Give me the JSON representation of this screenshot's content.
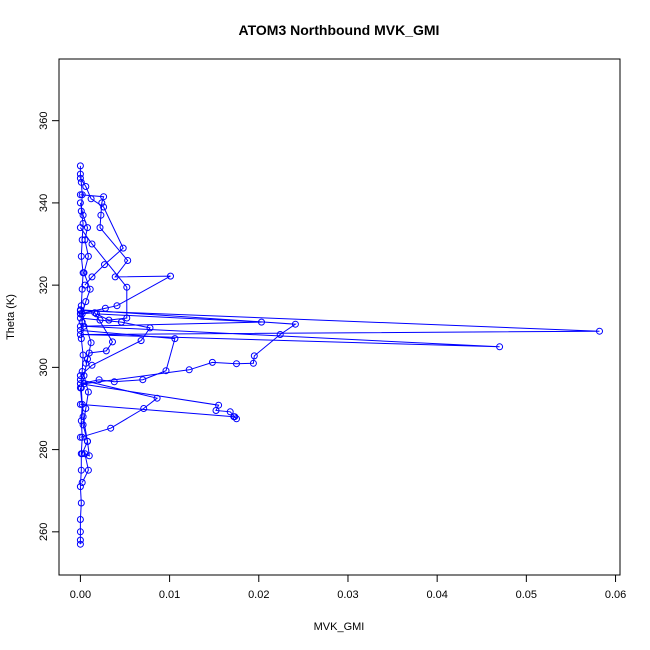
{
  "chart_data": {
    "type": "line",
    "title": "ATOM3 Northbound MVK_GMI",
    "xlabel": "MVK_GMI",
    "ylabel": "Theta (K)",
    "xlim": [
      -0.0024,
      0.0605
    ],
    "ylim": [
      249.5,
      375
    ],
    "x_ticks": [
      0,
      0.01,
      0.02,
      0.03,
      0.04,
      0.05,
      0.06
    ],
    "x_tick_labels": [
      "0.00",
      "0.01",
      "0.02",
      "0.03",
      "0.04",
      "0.05",
      "0.06"
    ],
    "y_ticks": [
      260,
      280,
      300,
      320,
      340,
      360
    ],
    "y_tick_labels": [
      "260",
      "280",
      "300",
      "320",
      "340",
      "360"
    ],
    "grid": false,
    "series_color": "#0000ff",
    "marker": "open-circle",
    "series": [
      {
        "points": [
          [
            0.0,
            349.0
          ],
          [
            0.0,
            347.0
          ],
          [
            0.0001,
            345.0
          ],
          [
            0.0002,
            342.0
          ],
          [
            0.0001,
            338.0
          ],
          [
            0.0003,
            335.0
          ],
          [
            0.0002,
            331.0
          ],
          [
            0.0001,
            327.0
          ],
          [
            0.0003,
            323.0
          ],
          [
            0.0002,
            319.0
          ],
          [
            0.0001,
            315.0
          ],
          [
            0.0002,
            311.0
          ],
          [
            0.0001,
            307.0
          ],
          [
            0.0003,
            303.0
          ],
          [
            0.0002,
            299.0
          ],
          [
            0.0001,
            295.0
          ],
          [
            0.0002,
            291.0
          ],
          [
            0.0001,
            287.0
          ],
          [
            0.0002,
            283.0
          ],
          [
            0.0001,
            279.0
          ],
          [
            0.0001,
            275.0
          ],
          [
            0.0,
            271.0
          ],
          [
            0.0001,
            267.0
          ],
          [
            0.0,
            263.0
          ],
          [
            0.0,
            260.0
          ],
          [
            0.0,
            258.0
          ],
          [
            0.0,
            257.0
          ]
        ]
      },
      {
        "points": [
          [
            0.0,
            346.0
          ],
          [
            0.0006,
            344.0
          ],
          [
            0.0012,
            341.0
          ],
          [
            0.0026,
            339.0
          ],
          [
            0.0048,
            329.0
          ],
          [
            0.0027,
            325.0
          ],
          [
            0.0013,
            322.0
          ],
          [
            0.0005,
            320.0
          ]
        ]
      },
      {
        "points": [
          [
            0.0,
            342.0
          ],
          [
            0.0026,
            341.5
          ],
          [
            0.0024,
            340.0
          ],
          [
            0.0023,
            337.0
          ],
          [
            0.0022,
            334.0
          ],
          [
            0.0053,
            326.0
          ],
          [
            0.0039,
            322.0
          ],
          [
            0.0101,
            322.2
          ],
          [
            0.0041,
            315.0
          ],
          [
            0.0028,
            314.4
          ],
          [
            0.0,
            313.0
          ]
        ]
      },
      {
        "points": [
          [
            0.0,
            334.0
          ],
          [
            0.0013,
            330.0
          ],
          [
            0.0052,
            319.5
          ],
          [
            0.0052,
            312.0
          ],
          [
            0.0032,
            311.5
          ],
          [
            0.0018,
            313.0
          ],
          [
            0.0203,
            311.0
          ],
          [
            0.0,
            310.0
          ]
        ]
      },
      {
        "points": [
          [
            0.0,
            313.8
          ],
          [
            0.0582,
            308.8
          ],
          [
            0.0,
            308.0
          ],
          [
            0.047,
            305.0
          ],
          [
            0.0004,
            310.0
          ]
        ]
      },
      {
        "points": [
          [
            0.0,
            314.0
          ],
          [
            0.0241,
            310.5
          ],
          [
            0.0224,
            308.0
          ],
          [
            0.0195,
            302.8
          ],
          [
            0.0194,
            301.0
          ],
          [
            0.0175,
            300.9
          ],
          [
            0.0148,
            301.2
          ],
          [
            0.0122,
            299.4
          ],
          [
            0.0004,
            296.0
          ]
        ]
      },
      {
        "points": [
          [
            0.0,
            313.0
          ],
          [
            0.0016,
            313.3
          ],
          [
            0.0036,
            306.2
          ],
          [
            0.0029,
            304.0
          ],
          [
            0.001,
            303.5
          ],
          [
            0.0006,
            301.0
          ]
        ]
      },
      {
        "points": [
          [
            0.0,
            312.0
          ],
          [
            0.0022,
            311.5
          ],
          [
            0.0046,
            311.0
          ],
          [
            0.0078,
            309.6
          ],
          [
            0.0068,
            306.5
          ],
          [
            0.0013,
            300.5
          ],
          [
            0.0,
            298.0
          ]
        ]
      },
      {
        "points": [
          [
            0.0,
            309.0
          ],
          [
            0.0106,
            307.0
          ],
          [
            0.0096,
            299.2
          ],
          [
            0.007,
            297.0
          ],
          [
            0.0038,
            296.5
          ],
          [
            0.0021,
            297.0
          ],
          [
            0.0,
            296.0
          ]
        ]
      },
      {
        "points": [
          [
            0.0,
            297.0
          ],
          [
            0.0086,
            292.5
          ],
          [
            0.0071,
            290.0
          ],
          [
            0.0034,
            285.2
          ],
          [
            0.0,
            283.0
          ]
        ]
      },
      {
        "points": [
          [
            0.0,
            296.0
          ],
          [
            0.0155,
            290.8
          ],
          [
            0.0152,
            289.5
          ],
          [
            0.0168,
            289.2
          ],
          [
            0.0173,
            288.0
          ],
          [
            0.0175,
            287.5
          ],
          [
            0.0172,
            288.0
          ],
          [
            0.0,
            291.0
          ]
        ]
      },
      {
        "points": [
          [
            0.0,
            295.0
          ],
          [
            0.0003,
            288.0
          ],
          [
            0.0008,
            282.0
          ],
          [
            0.001,
            278.5
          ],
          [
            0.0005,
            279.0
          ],
          [
            0.0009,
            275.0
          ],
          [
            0.0002,
            272.0
          ]
        ]
      },
      {
        "points": [
          [
            0.0,
            340.0
          ],
          [
            0.0003,
            337.0
          ],
          [
            0.0008,
            334.0
          ],
          [
            0.0005,
            331.0
          ],
          [
            0.0009,
            327.0
          ],
          [
            0.0004,
            323.0
          ],
          [
            0.0011,
            319.0
          ],
          [
            0.0006,
            316.0
          ],
          [
            0.0002,
            313.0
          ],
          [
            0.0012,
            306.0
          ],
          [
            0.0008,
            302.0
          ],
          [
            0.0004,
            298.0
          ],
          [
            0.0009,
            294.0
          ],
          [
            0.0006,
            290.0
          ],
          [
            0.0003,
            286.0
          ],
          [
            0.0008,
            282.0
          ],
          [
            0.0002,
            279.0
          ]
        ]
      }
    ]
  }
}
